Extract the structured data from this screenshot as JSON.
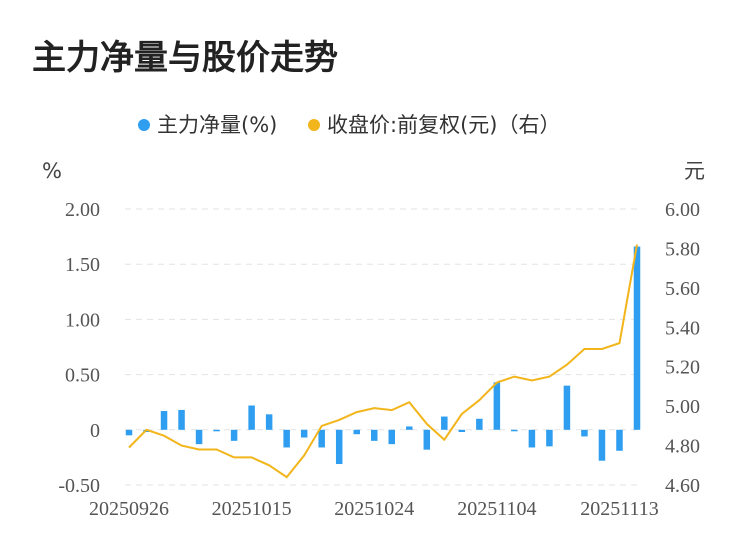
{
  "title": "主力净量与股价走势",
  "legend": [
    {
      "label": "主力净量(%)",
      "color": "#2f9ef0"
    },
    {
      "label": "收盘价:前复权(元)（右）",
      "color": "#f2b51b"
    }
  ],
  "left_unit": "%",
  "right_unit": "元",
  "chart_data": {
    "type": "bar+line",
    "left_axis": {
      "ticks": [
        "2.00",
        "1.50",
        "1.00",
        "0.50",
        "0",
        "-0.50"
      ],
      "min": -0.5,
      "max": 2.0
    },
    "right_axis": {
      "ticks": [
        "6.00",
        "5.80",
        "5.60",
        "5.40",
        "5.20",
        "5.00",
        "4.80",
        "4.60"
      ],
      "min": 4.6,
      "max": 6.0
    },
    "x_tick_labels": [
      "20250926",
      "20251015",
      "20251024",
      "20251104",
      "20251113"
    ],
    "x_tick_index": [
      0,
      7,
      14,
      21,
      28
    ],
    "grid": true,
    "series": [
      {
        "name": "主力净量(%)",
        "type": "bar",
        "color": "#2f9ef0",
        "values": [
          -0.05,
          -0.02,
          0.17,
          0.18,
          -0.13,
          -0.01,
          -0.1,
          0.22,
          0.14,
          -0.16,
          -0.07,
          -0.16,
          -0.31,
          -0.04,
          -0.1,
          -0.13,
          0.03,
          -0.18,
          0.12,
          -0.02,
          0.1,
          0.43,
          -0.01,
          -0.16,
          -0.15,
          0.4,
          -0.06,
          -0.28,
          -0.19,
          1.66
        ]
      },
      {
        "name": "收盘价:前复权(元)（右）",
        "type": "line",
        "color": "#f2b51b",
        "values": [
          4.79,
          4.88,
          4.85,
          4.8,
          4.78,
          4.78,
          4.74,
          4.74,
          4.7,
          4.64,
          4.75,
          4.9,
          4.93,
          4.97,
          4.99,
          4.98,
          5.02,
          4.91,
          4.83,
          4.96,
          5.03,
          5.12,
          5.15,
          5.13,
          5.15,
          5.21,
          5.29,
          5.29,
          5.32,
          5.82
        ]
      }
    ]
  }
}
